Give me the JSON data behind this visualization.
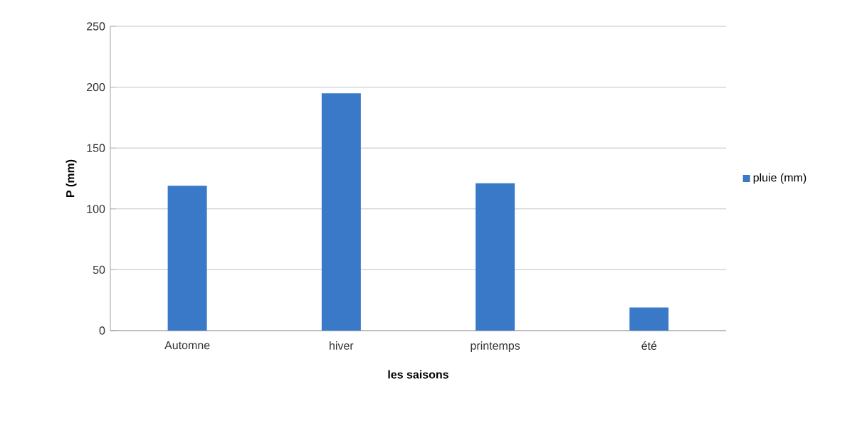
{
  "chart_data": {
    "type": "bar",
    "xlabel": "les saisons",
    "ylabel": "P (mm)",
    "categories": [
      "Automne",
      "hiver",
      "printemps",
      "été"
    ],
    "series": [
      {
        "name": "pluie (mm)",
        "color": "#3a78c8",
        "values": [
          119,
          195,
          121,
          19
        ]
      }
    ],
    "ylim": [
      0,
      250
    ],
    "yticks": [
      0,
      50,
      100,
      150,
      200,
      250
    ],
    "grid": "y",
    "legend": "right"
  }
}
